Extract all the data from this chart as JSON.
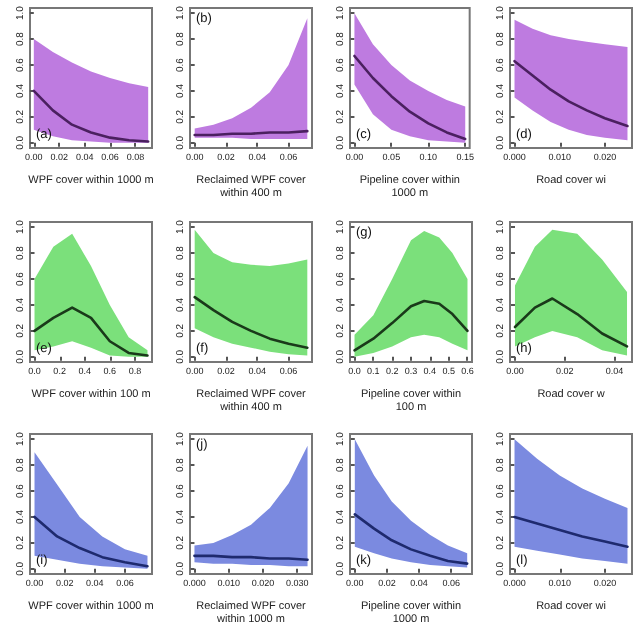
{
  "chart_data": [
    {
      "type": "line",
      "annotations": [
        "(a)"
      ],
      "xlabel": "WPF cover within 1000 m",
      "xlim": [
        -0.003,
        0.093
      ],
      "xticks": [
        {
          "value": 0,
          "label": "0.00"
        },
        {
          "value": 0.02,
          "label": "0.02"
        },
        {
          "value": 0.04,
          "label": "0.04"
        },
        {
          "value": 0.06,
          "label": "0.06"
        },
        {
          "value": 0.08,
          "label": "0.08"
        }
      ],
      "ylim": [
        -0.04,
        1.04
      ],
      "yticks": [
        {
          "value": 0,
          "label": "0.0"
        },
        {
          "value": 0.2,
          "label": "0.2"
        },
        {
          "value": 0.4,
          "label": "0.4"
        },
        {
          "value": 0.6,
          "label": "0.6"
        },
        {
          "value": 0.8,
          "label": "0.8"
        },
        {
          "value": 1,
          "label": "1.0"
        }
      ],
      "grid": false,
      "marker": "none",
      "line_style": "solid",
      "series": [
        {
          "color": "#4b2060",
          "x": [
            0,
            0.015,
            0.03,
            0.045,
            0.06,
            0.075,
            0.09
          ],
          "values": [
            0.4,
            0.25,
            0.14,
            0.08,
            0.04,
            0.02,
            0.01
          ],
          "lower": [
            0.1,
            0.05,
            0.02,
            0.01,
            0,
            0,
            0
          ],
          "upper": [
            0.8,
            0.7,
            0.62,
            0.55,
            0.5,
            0.46,
            0.43
          ]
        }
      ]
    },
    {
      "type": "line",
      "annotations": [
        "(b)"
      ],
      "xlabel": "Reclaimed WPF cover within 400 m",
      "xlim": [
        -0.003,
        0.075
      ],
      "xticks": [
        {
          "value": 0,
          "label": "0.00"
        },
        {
          "value": 0.02,
          "label": "0.02"
        },
        {
          "value": 0.04,
          "label": "0.04"
        },
        {
          "value": 0.06,
          "label": "0.06"
        }
      ],
      "ylim": [
        -0.04,
        1.04
      ],
      "yticks": [
        {
          "value": 0,
          "label": "0.0"
        },
        {
          "value": 0.2,
          "label": "0.2"
        },
        {
          "value": 0.4,
          "label": "0.4"
        },
        {
          "value": 0.6,
          "label": "0.6"
        },
        {
          "value": 0.8,
          "label": "0.8"
        },
        {
          "value": 1,
          "label": "1.0"
        }
      ],
      "grid": false,
      "marker": "none",
      "line_style": "solid",
      "series": [
        {
          "color": "#4b2060",
          "x": [
            0,
            0.012,
            0.024,
            0.036,
            0.048,
            0.06,
            0.072
          ],
          "values": [
            0.06,
            0.06,
            0.07,
            0.07,
            0.08,
            0.08,
            0.09
          ],
          "lower": [
            0.04,
            0.04,
            0.04,
            0.03,
            0.03,
            0.03,
            0.03
          ],
          "upper": [
            0.11,
            0.14,
            0.19,
            0.27,
            0.39,
            0.6,
            0.96
          ]
        }
      ]
    },
    {
      "type": "line",
      "annotations": [
        "(c)"
      ],
      "xlabel": "Pipeline cover within 1000 m",
      "xlim": [
        -0.006,
        0.156
      ],
      "xticks": [
        {
          "value": 0,
          "label": "0.00"
        },
        {
          "value": 0.05,
          "label": "0.05"
        },
        {
          "value": 0.1,
          "label": "0.10"
        },
        {
          "value": 0.15,
          "label": "0.15"
        }
      ],
      "ylim": [
        -0.04,
        1.04
      ],
      "yticks": [
        {
          "value": 0,
          "label": "0.0"
        },
        {
          "value": 0.2,
          "label": "0.2"
        },
        {
          "value": 0.4,
          "label": "0.4"
        },
        {
          "value": 0.6,
          "label": "0.6"
        },
        {
          "value": 0.8,
          "label": "0.8"
        },
        {
          "value": 1,
          "label": "1.0"
        }
      ],
      "grid": false,
      "marker": "none",
      "line_style": "solid",
      "series": [
        {
          "color": "#4b2060",
          "x": [
            0,
            0.025,
            0.05,
            0.075,
            0.1,
            0.125,
            0.15
          ],
          "values": [
            0.67,
            0.5,
            0.36,
            0.24,
            0.15,
            0.08,
            0.03
          ],
          "lower": [
            0.45,
            0.22,
            0.1,
            0.05,
            0.02,
            0.01,
            0
          ],
          "upper": [
            1.0,
            0.76,
            0.6,
            0.48,
            0.4,
            0.33,
            0.28
          ]
        }
      ]
    },
    {
      "type": "line",
      "annotations": [
        "(d)"
      ],
      "xlabel": "Road cover wi",
      "xlim": [
        -0.001,
        0.026
      ],
      "xticks": [
        {
          "value": 0,
          "label": "0.000"
        },
        {
          "value": 0.01,
          "label": "0.010"
        },
        {
          "value": 0.02,
          "label": "0.020"
        }
      ],
      "ylim": [
        -0.04,
        1.04
      ],
      "yticks": [
        {
          "value": 0,
          "label": "0.0"
        },
        {
          "value": 0.2,
          "label": "0.2"
        },
        {
          "value": 0.4,
          "label": "0.4"
        },
        {
          "value": 0.6,
          "label": "0.6"
        },
        {
          "value": 0.8,
          "label": "0.8"
        },
        {
          "value": 1,
          "label": "1.0"
        }
      ],
      "grid": false,
      "marker": "none",
      "line_style": "solid",
      "series": [
        {
          "color": "#4b2060",
          "x": [
            0,
            0.004,
            0.008,
            0.012,
            0.016,
            0.02,
            0.025
          ],
          "values": [
            0.63,
            0.52,
            0.41,
            0.32,
            0.25,
            0.19,
            0.13
          ],
          "lower": [
            0.35,
            0.25,
            0.16,
            0.1,
            0.06,
            0.04,
            0.02
          ],
          "upper": [
            0.95,
            0.88,
            0.83,
            0.8,
            0.78,
            0.76,
            0.74
          ]
        }
      ]
    },
    {
      "type": "line",
      "annotations": [
        "(e)"
      ],
      "xlabel": "WPF cover within 100 m",
      "xlim": [
        -0.036,
        0.936
      ],
      "xticks": [
        {
          "value": 0,
          "label": "0.0"
        },
        {
          "value": 0.2,
          "label": "0.2"
        },
        {
          "value": 0.4,
          "label": "0.4"
        },
        {
          "value": 0.6,
          "label": "0.6"
        },
        {
          "value": 0.8,
          "label": "0.8"
        }
      ],
      "ylim": [
        -0.04,
        1.04
      ],
      "yticks": [
        {
          "value": 0,
          "label": "0.0"
        },
        {
          "value": 0.2,
          "label": "0.2"
        },
        {
          "value": 0.4,
          "label": "0.4"
        },
        {
          "value": 0.6,
          "label": "0.6"
        },
        {
          "value": 0.8,
          "label": "0.8"
        },
        {
          "value": 1,
          "label": "1.0"
        }
      ],
      "grid": false,
      "marker": "none",
      "line_style": "solid",
      "series": [
        {
          "color": "#1a3a1a",
          "x": [
            0,
            0.15,
            0.3,
            0.45,
            0.6,
            0.75,
            0.9
          ],
          "values": [
            0.2,
            0.3,
            0.38,
            0.3,
            0.12,
            0.03,
            0.01
          ],
          "lower": [
            0.05,
            0.08,
            0.12,
            0.07,
            0.01,
            0,
            0
          ],
          "upper": [
            0.6,
            0.85,
            0.95,
            0.7,
            0.4,
            0.15,
            0.05
          ]
        }
      ]
    },
    {
      "type": "line",
      "annotations": [
        "(f)"
      ],
      "xlabel": "Reclaimed WPF cover within 400 m",
      "xlim": [
        -0.003,
        0.075
      ],
      "xticks": [
        {
          "value": 0,
          "label": "0.00"
        },
        {
          "value": 0.02,
          "label": "0.02"
        },
        {
          "value": 0.04,
          "label": "0.04"
        },
        {
          "value": 0.06,
          "label": "0.06"
        }
      ],
      "ylim": [
        -0.04,
        1.04
      ],
      "yticks": [
        {
          "value": 0,
          "label": "0.0"
        },
        {
          "value": 0.2,
          "label": "0.2"
        },
        {
          "value": 0.4,
          "label": "0.4"
        },
        {
          "value": 0.6,
          "label": "0.6"
        },
        {
          "value": 0.8,
          "label": "0.8"
        },
        {
          "value": 1,
          "label": "1.0"
        }
      ],
      "grid": false,
      "marker": "none",
      "line_style": "solid",
      "series": [
        {
          "color": "#1a3a1a",
          "x": [
            0,
            0.012,
            0.024,
            0.036,
            0.048,
            0.06,
            0.072
          ],
          "values": [
            0.46,
            0.36,
            0.27,
            0.2,
            0.14,
            0.1,
            0.07
          ],
          "lower": [
            0.22,
            0.15,
            0.1,
            0.07,
            0.04,
            0.02,
            0.01
          ],
          "upper": [
            0.98,
            0.8,
            0.73,
            0.71,
            0.7,
            0.72,
            0.75
          ]
        }
      ]
    },
    {
      "type": "line",
      "annotations": [
        "(g)"
      ],
      "xlabel": "Pipeline cover within 100 m",
      "xlim": [
        -0.024,
        0.624
      ],
      "xticks": [
        {
          "value": 0,
          "label": "0.0"
        },
        {
          "value": 0.1,
          "label": "0.1"
        },
        {
          "value": 0.2,
          "label": "0.2"
        },
        {
          "value": 0.3,
          "label": "0.3"
        },
        {
          "value": 0.4,
          "label": "0.4"
        },
        {
          "value": 0.5,
          "label": "0.5"
        },
        {
          "value": 0.6,
          "label": "0.6"
        }
      ],
      "ylim": [
        -0.04,
        1.04
      ],
      "yticks": [
        {
          "value": 0,
          "label": "0.0"
        },
        {
          "value": 0.2,
          "label": "0.2"
        },
        {
          "value": 0.4,
          "label": "0.4"
        },
        {
          "value": 0.6,
          "label": "0.6"
        },
        {
          "value": 0.8,
          "label": "0.8"
        },
        {
          "value": 1,
          "label": "1.0"
        }
      ],
      "grid": false,
      "marker": "none",
      "line_style": "solid",
      "series": [
        {
          "color": "#1a3a1a",
          "x": [
            0,
            0.1,
            0.2,
            0.3,
            0.37,
            0.45,
            0.52,
            0.6
          ],
          "values": [
            0.05,
            0.14,
            0.26,
            0.39,
            0.43,
            0.41,
            0.33,
            0.2
          ],
          "lower": [
            0,
            0.03,
            0.08,
            0.15,
            0.17,
            0.15,
            0.1,
            0.05
          ],
          "upper": [
            0.17,
            0.32,
            0.6,
            0.9,
            0.97,
            0.92,
            0.8,
            0.6
          ]
        }
      ]
    },
    {
      "type": "line",
      "annotations": [
        "(h)"
      ],
      "xlabel": "Road cover w",
      "xlim": [
        -0.002,
        0.047
      ],
      "xticks": [
        {
          "value": 0,
          "label": "0.00"
        },
        {
          "value": 0.02,
          "label": "0.02"
        },
        {
          "value": 0.04,
          "label": "0.04"
        }
      ],
      "ylim": [
        -0.04,
        1.04
      ],
      "yticks": [
        {
          "value": 0,
          "label": "0.0"
        },
        {
          "value": 0.2,
          "label": "0.2"
        },
        {
          "value": 0.4,
          "label": "0.4"
        },
        {
          "value": 0.6,
          "label": "0.6"
        },
        {
          "value": 0.8,
          "label": "0.8"
        },
        {
          "value": 1,
          "label": "1.0"
        }
      ],
      "grid": false,
      "marker": "none",
      "line_style": "solid",
      "series": [
        {
          "color": "#1a3a1a",
          "x": [
            0,
            0.008,
            0.015,
            0.025,
            0.035,
            0.045
          ],
          "values": [
            0.23,
            0.38,
            0.45,
            0.33,
            0.18,
            0.08
          ],
          "lower": [
            0.08,
            0.15,
            0.2,
            0.15,
            0.05,
            0.01
          ],
          "upper": [
            0.55,
            0.85,
            0.98,
            0.95,
            0.75,
            0.5
          ]
        }
      ]
    },
    {
      "type": "line",
      "annotations": [
        "(i)"
      ],
      "xlabel": "WPF cover within 1000 m",
      "xlim": [
        -0.003,
        0.078
      ],
      "xticks": [
        {
          "value": 0,
          "label": "0.00"
        },
        {
          "value": 0.02,
          "label": "0.02"
        },
        {
          "value": 0.04,
          "label": "0.04"
        },
        {
          "value": 0.06,
          "label": "0.06"
        }
      ],
      "ylim": [
        -0.04,
        1.04
      ],
      "yticks": [
        {
          "value": 0,
          "label": "0.0"
        },
        {
          "value": 0.2,
          "label": "0.2"
        },
        {
          "value": 0.4,
          "label": "0.4"
        },
        {
          "value": 0.6,
          "label": "0.6"
        },
        {
          "value": 0.8,
          "label": "0.8"
        },
        {
          "value": 1,
          "label": "1.0"
        }
      ],
      "grid": false,
      "marker": "none",
      "line_style": "solid",
      "series": [
        {
          "color": "#1e2a6e",
          "x": [
            0,
            0.015,
            0.03,
            0.045,
            0.06,
            0.075
          ],
          "values": [
            0.4,
            0.25,
            0.16,
            0.09,
            0.05,
            0.02
          ],
          "lower": [
            0.1,
            0.07,
            0.04,
            0.02,
            0.01,
            0
          ],
          "upper": [
            0.9,
            0.65,
            0.4,
            0.25,
            0.15,
            0.1
          ]
        }
      ]
    },
    {
      "type": "line",
      "annotations": [
        "(j)"
      ],
      "xlabel": "Reclaimed WPF cover within 1000 m",
      "xlim": [
        -0.0013,
        0.0343
      ],
      "xticks": [
        {
          "value": 0,
          "label": "0.000"
        },
        {
          "value": 0.01,
          "label": "0.010"
        },
        {
          "value": 0.02,
          "label": "0.020"
        },
        {
          "value": 0.03,
          "label": "0.030"
        }
      ],
      "ylim": [
        -0.04,
        1.04
      ],
      "yticks": [
        {
          "value": 0,
          "label": "0.0"
        },
        {
          "value": 0.2,
          "label": "0.2"
        },
        {
          "value": 0.4,
          "label": "0.4"
        },
        {
          "value": 0.6,
          "label": "0.6"
        },
        {
          "value": 0.8,
          "label": "0.8"
        },
        {
          "value": 1,
          "label": "1.0"
        }
      ],
      "grid": false,
      "marker": "none",
      "line_style": "solid",
      "series": [
        {
          "color": "#1e2a6e",
          "x": [
            0,
            0.0055,
            0.011,
            0.0165,
            0.022,
            0.0275,
            0.033
          ],
          "values": [
            0.1,
            0.1,
            0.09,
            0.09,
            0.08,
            0.08,
            0.07
          ],
          "lower": [
            0.05,
            0.04,
            0.04,
            0.03,
            0.03,
            0.02,
            0.02
          ],
          "upper": [
            0.18,
            0.2,
            0.26,
            0.34,
            0.47,
            0.66,
            0.95
          ]
        }
      ]
    },
    {
      "type": "line",
      "annotations": [
        "(k)"
      ],
      "xlabel": "Pipeline cover within 1000 m",
      "xlim": [
        -0.003,
        0.073
      ],
      "xticks": [
        {
          "value": 0,
          "label": "0.00"
        },
        {
          "value": 0.02,
          "label": "0.02"
        },
        {
          "value": 0.04,
          "label": "0.04"
        },
        {
          "value": 0.06,
          "label": "0.06"
        }
      ],
      "ylim": [
        -0.04,
        1.04
      ],
      "yticks": [
        {
          "value": 0,
          "label": "0.0"
        },
        {
          "value": 0.2,
          "label": "0.2"
        },
        {
          "value": 0.4,
          "label": "0.4"
        },
        {
          "value": 0.6,
          "label": "0.6"
        },
        {
          "value": 0.8,
          "label": "0.8"
        },
        {
          "value": 1,
          "label": "1.0"
        }
      ],
      "grid": false,
      "marker": "none",
      "line_style": "solid",
      "series": [
        {
          "color": "#1e2a6e",
          "x": [
            0,
            0.012,
            0.023,
            0.035,
            0.047,
            0.058,
            0.07
          ],
          "values": [
            0.42,
            0.31,
            0.22,
            0.15,
            0.1,
            0.06,
            0.04
          ],
          "lower": [
            0.17,
            0.12,
            0.08,
            0.05,
            0.03,
            0.02,
            0.01
          ],
          "upper": [
            1.0,
            0.72,
            0.52,
            0.37,
            0.26,
            0.18,
            0.12
          ]
        }
      ]
    },
    {
      "type": "line",
      "annotations": [
        "(l)"
      ],
      "xlabel": "Road cover wi",
      "xlim": [
        -0.001,
        0.026
      ],
      "xticks": [
        {
          "value": 0,
          "label": "0.000"
        },
        {
          "value": 0.01,
          "label": "0.010"
        },
        {
          "value": 0.02,
          "label": "0.020"
        }
      ],
      "ylim": [
        -0.04,
        1.04
      ],
      "yticks": [
        {
          "value": 0,
          "label": "0.0"
        },
        {
          "value": 0.2,
          "label": "0.2"
        },
        {
          "value": 0.4,
          "label": "0.4"
        },
        {
          "value": 0.6,
          "label": "0.6"
        },
        {
          "value": 0.8,
          "label": "0.8"
        },
        {
          "value": 1,
          "label": "1.0"
        }
      ],
      "grid": false,
      "marker": "none",
      "line_style": "solid",
      "series": [
        {
          "color": "#1e2a6e",
          "x": [
            0,
            0.005,
            0.01,
            0.015,
            0.02,
            0.025
          ],
          "values": [
            0.4,
            0.35,
            0.3,
            0.25,
            0.21,
            0.17
          ],
          "lower": [
            0.17,
            0.14,
            0.11,
            0.08,
            0.06,
            0.04
          ],
          "upper": [
            1.0,
            0.85,
            0.72,
            0.62,
            0.54,
            0.47
          ]
        }
      ]
    }
  ]
}
